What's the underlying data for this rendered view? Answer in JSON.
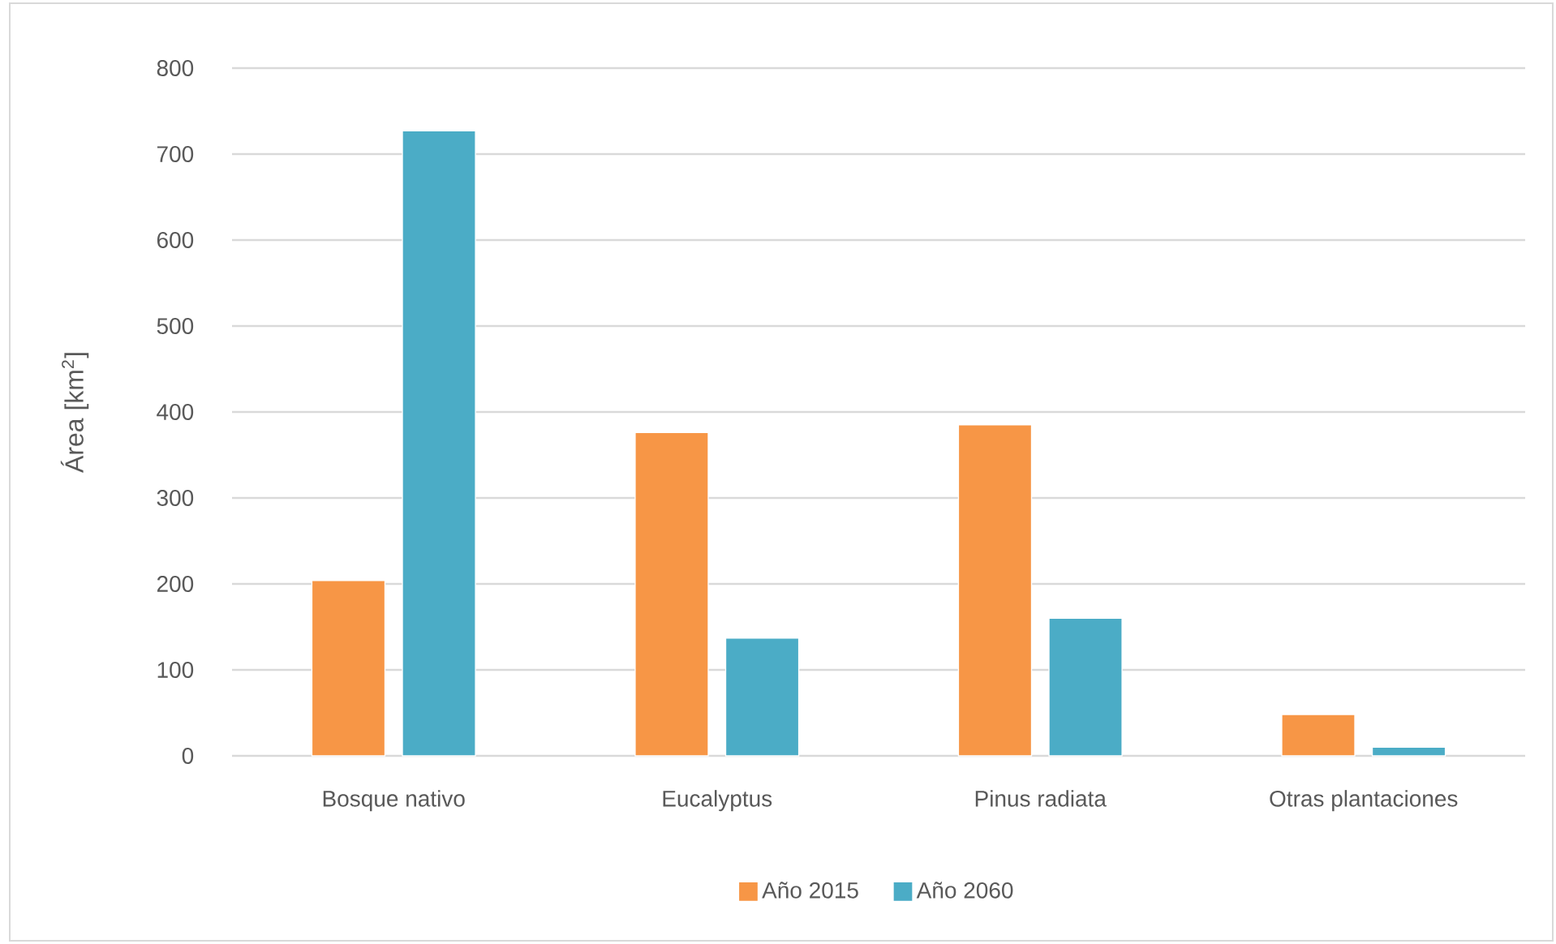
{
  "chart_data": {
    "type": "bar",
    "ylabel": "Área [km$^{2}$]",
    "categories": [
      "Bosque nativo",
      "Eucalyptus",
      "Pinus radiata",
      "Otras plantaciones"
    ],
    "series": [
      {
        "name": "Año 2015",
        "color": "#f79646",
        "values": [
          204,
          376,
          385,
          48
        ]
      },
      {
        "name": "Año 2060",
        "color": "#4bacc6",
        "values": [
          727,
          137,
          160,
          10
        ]
      }
    ],
    "ylim": [
      0,
      800
    ],
    "yticks": [
      0,
      100,
      200,
      300,
      400,
      500,
      600,
      700,
      800
    ],
    "grid": "y",
    "legend": "bottom"
  }
}
